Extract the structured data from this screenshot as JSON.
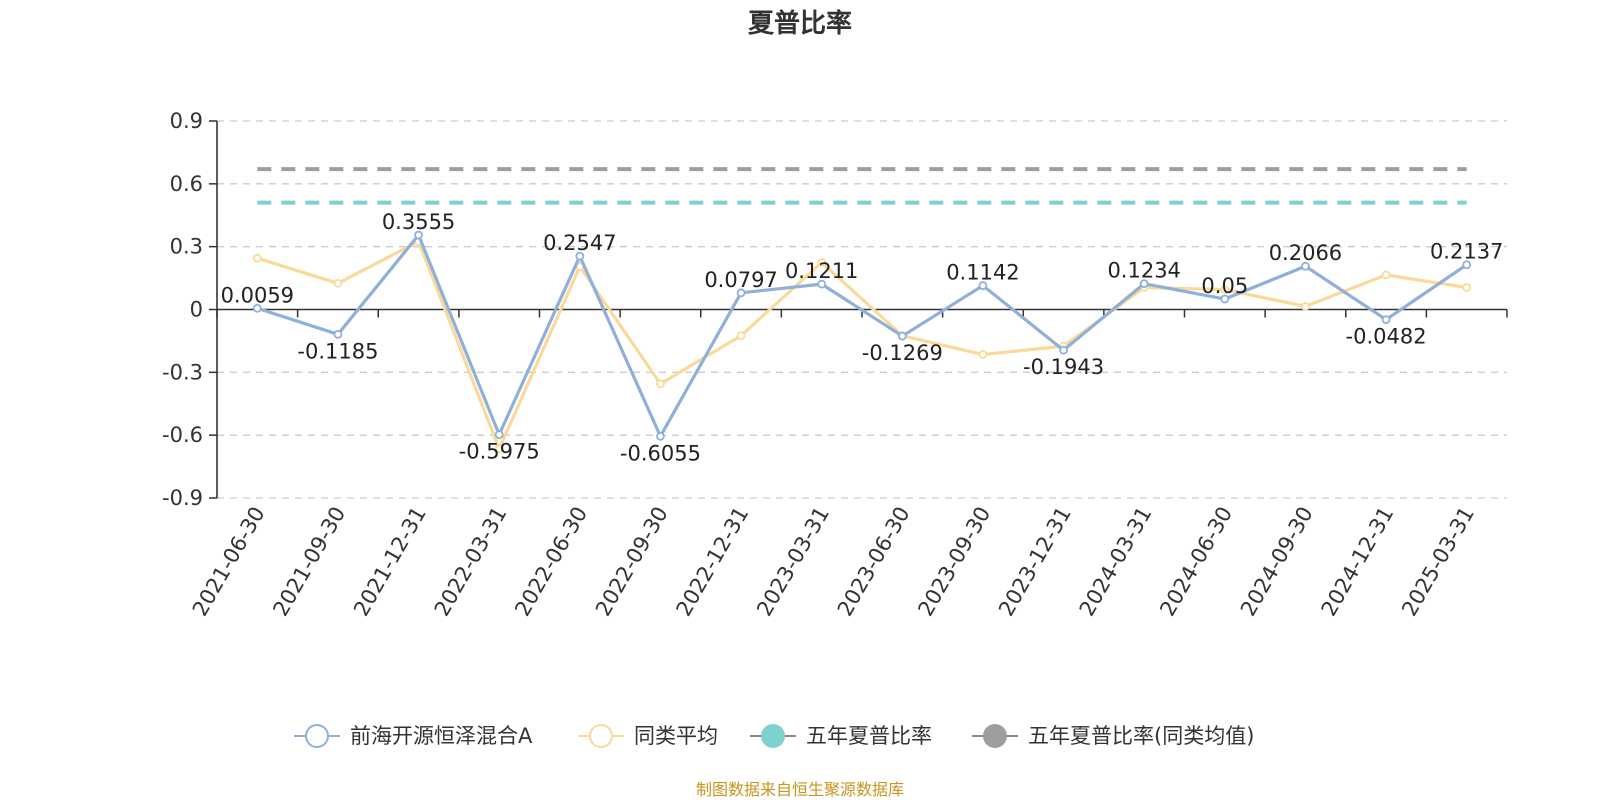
{
  "chart_data": {
    "type": "line",
    "title": "夏普比率",
    "categories": [
      "2021-06-30",
      "2021-09-30",
      "2021-12-31",
      "2022-03-31",
      "2022-06-30",
      "2022-09-30",
      "2022-12-31",
      "2023-03-31",
      "2023-06-30",
      "2023-09-30",
      "2023-12-31",
      "2024-03-31",
      "2024-06-30",
      "2024-09-30",
      "2024-12-31",
      "2025-03-31"
    ],
    "y_ticks": [
      "0.9",
      "0.6",
      "0.3",
      "0",
      "-0.3",
      "-0.6",
      "-0.9"
    ],
    "ylim": [
      -0.9,
      0.9
    ],
    "grid": true,
    "legend_position": "bottom",
    "series": [
      {
        "name": "前海开源恒泽混合A",
        "color": "#8eb0d9",
        "values": [
          0.0059,
          -0.1185,
          0.3555,
          -0.5975,
          0.2547,
          -0.6055,
          0.0797,
          0.1211,
          -0.1269,
          0.1142,
          -0.1943,
          0.1234,
          0.05,
          0.2066,
          -0.0482,
          0.2137
        ],
        "labels": [
          "0.0059",
          "-0.1185",
          "0.3555",
          "-0.5975",
          "0.2547",
          "-0.6055",
          "0.0797",
          "0.1211",
          "-0.1269",
          "0.1142",
          "-0.1943",
          "0.1234",
          "0.05",
          "0.2066",
          "-0.0482",
          "0.2137"
        ]
      },
      {
        "name": "同类平均",
        "color": "#fbd99a",
        "values": [
          0.245,
          0.125,
          0.325,
          -0.665,
          0.205,
          -0.355,
          -0.125,
          0.225,
          -0.125,
          -0.215,
          -0.175,
          0.105,
          0.095,
          0.015,
          0.165,
          0.105
        ]
      },
      {
        "name": "五年夏普比率",
        "color": "#7fd1d1",
        "value": 0.51
      },
      {
        "name": "五年夏普比率(同类均值)",
        "color": "#9e9e9e",
        "value": 0.67
      }
    ]
  },
  "footer": {
    "source": "制图数据来自恒生聚源数据库",
    "source_color": "#c8951e"
  }
}
